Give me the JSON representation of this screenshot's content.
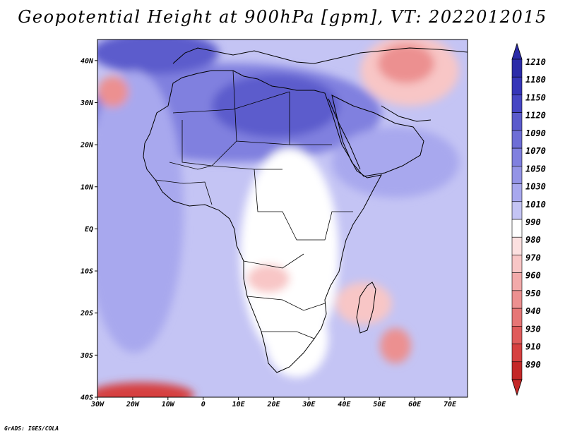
{
  "title": "Geopotential Height at 900hPa [gpm], VT: 2022012015",
  "credit": "GrADS: IGES/COLA",
  "axes": {
    "lat_labels": [
      "40N",
      "30N",
      "20N",
      "10N",
      "EQ",
      "10S",
      "20S",
      "30S",
      "40S"
    ],
    "lon_labels": [
      "30W",
      "20W",
      "10W",
      "0",
      "10E",
      "20E",
      "30E",
      "40E",
      "50E",
      "60E",
      "70E"
    ],
    "lon_range": [
      -30,
      75
    ],
    "lat_range": [
      -40,
      45
    ]
  },
  "colorbar": {
    "levels": [
      "1210",
      "1180",
      "1150",
      "1120",
      "1090",
      "1070",
      "1050",
      "1030",
      "1010",
      "990",
      "980",
      "970",
      "960",
      "950",
      "940",
      "930",
      "910",
      "890"
    ],
    "colors": [
      "#2b2ba8",
      "#3535b8",
      "#4646c4",
      "#5b5bcc",
      "#6e6ed6",
      "#8080df",
      "#9494e6",
      "#a8a8ee",
      "#c4c4f4",
      "#ffffff",
      "#fce0e0",
      "#f8c6c6",
      "#f2aaaa",
      "#ec9090",
      "#e67676",
      "#e05c5c",
      "#d64040",
      "#c42828"
    ]
  },
  "field_colors": {
    "ocean_low": "#c4c4f4",
    "ocean_mid": "#a8a8ee",
    "north_high": "#8080df",
    "deep_high": "#5b5bcc",
    "neutral": "#ffffff",
    "low_light": "#f8c6c6",
    "low_mid": "#ec9090",
    "low_deep": "#d64040"
  }
}
